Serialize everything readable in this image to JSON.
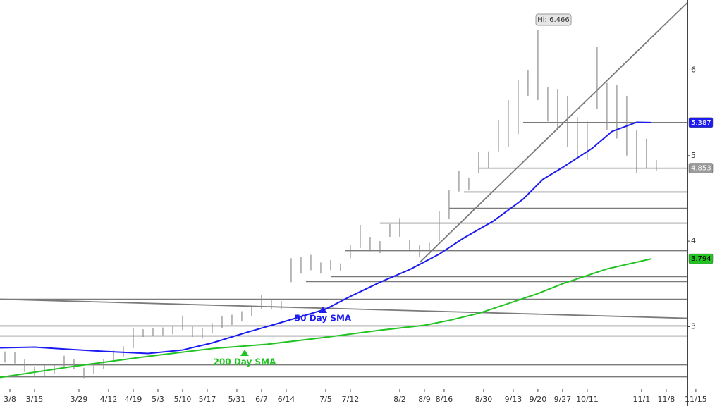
{
  "chart_data": {
    "type": "ohlc",
    "xlim": [
      -2,
      137.3
    ],
    "ylim": [
      2.27,
      6.82
    ],
    "yticks": [
      3,
      4,
      5,
      6
    ],
    "xticks": [
      {
        "value": 0,
        "label": "3/8"
      },
      {
        "value": 5,
        "label": "3/15"
      },
      {
        "value": 14,
        "label": "3/29"
      },
      {
        "value": 20,
        "label": "4/12"
      },
      {
        "value": 25,
        "label": "4/19"
      },
      {
        "value": 30,
        "label": "5/3"
      },
      {
        "value": 35,
        "label": "5/10"
      },
      {
        "value": 40,
        "label": "5/17"
      },
      {
        "value": 46,
        "label": "5/31"
      },
      {
        "value": 51,
        "label": "6/7"
      },
      {
        "value": 56,
        "label": "6/14"
      },
      {
        "value": 64,
        "label": "7/5"
      },
      {
        "value": 69,
        "label": "7/12"
      },
      {
        "value": 79,
        "label": "8/2"
      },
      {
        "value": 84,
        "label": "8/9"
      },
      {
        "value": 88,
        "label": "8/16"
      },
      {
        "value": 96,
        "label": "8/30"
      },
      {
        "value": 102,
        "label": "9/13"
      },
      {
        "value": 107,
        "label": "9/20"
      },
      {
        "value": 112,
        "label": "9/27"
      },
      {
        "value": 117,
        "label": "10/11"
      },
      {
        "value": 128,
        "label": "11/1"
      },
      {
        "value": 133,
        "label": "11/8"
      },
      {
        "value": 139,
        "label": "11/15"
      }
    ],
    "high_label": "Hi: 6.466",
    "bars": {
      "color": "#8c8c8c",
      "last": 4.853,
      "x": [
        -1,
        1,
        3,
        5,
        7,
        9,
        11,
        13,
        15,
        17,
        19,
        21,
        23,
        25,
        27,
        29,
        31,
        33,
        35,
        37,
        39,
        41,
        43,
        45,
        47,
        49,
        51,
        53,
        55,
        57,
        59,
        61,
        63,
        65,
        67,
        69,
        71,
        73,
        75,
        77,
        79,
        81,
        83,
        85,
        87,
        89,
        91,
        93,
        95,
        97,
        99,
        101,
        103,
        105,
        107,
        109,
        111,
        113,
        115,
        117,
        119,
        121,
        123,
        125,
        127,
        129,
        131
      ],
      "high": [
        2.71,
        2.7,
        2.62,
        2.53,
        2.55,
        2.56,
        2.66,
        2.62,
        2.52,
        2.56,
        2.62,
        2.72,
        2.77,
        2.98,
        2.97,
        2.98,
        2.99,
        3.0,
        3.13,
        3.0,
        2.98,
        3.04,
        3.12,
        3.14,
        3.18,
        3.25,
        3.37,
        3.32,
        3.3,
        3.8,
        3.82,
        3.84,
        3.75,
        3.78,
        3.74,
        3.96,
        4.19,
        4.05,
        4.0,
        4.2,
        4.27,
        4.01,
        3.95,
        3.98,
        4.35,
        4.6,
        4.82,
        4.74,
        5.04,
        5.05,
        5.42,
        5.65,
        5.88,
        6.0,
        6.466,
        5.8,
        5.78,
        5.7,
        5.45,
        5.4,
        6.27,
        5.85,
        5.83,
        5.7,
        5.3,
        5.2,
        4.95
      ],
      "low": [
        2.58,
        2.57,
        2.47,
        2.42,
        2.42,
        2.45,
        2.52,
        2.5,
        2.4,
        2.45,
        2.5,
        2.6,
        2.65,
        2.75,
        2.88,
        2.89,
        2.9,
        2.91,
        2.96,
        2.88,
        2.86,
        2.92,
        2.98,
        3.02,
        3.06,
        3.12,
        3.21,
        3.2,
        3.2,
        3.52,
        3.62,
        3.66,
        3.62,
        3.66,
        3.65,
        3.8,
        3.92,
        3.88,
        3.86,
        4.05,
        4.05,
        3.9,
        3.82,
        3.84,
        4.0,
        4.26,
        4.58,
        4.6,
        4.8,
        4.85,
        5.05,
        5.1,
        5.25,
        5.7,
        5.65,
        5.4,
        5.3,
        5.1,
        5.0,
        4.95,
        5.55,
        5.3,
        5.2,
        5.0,
        4.8,
        4.85,
        4.82
      ]
    },
    "series": [
      {
        "name": "50 Day SMA",
        "color": "#1c1cf0",
        "last": 5.387,
        "x": [
          -2,
          5,
          12,
          19,
          28,
          35,
          41,
          48,
          55,
          64,
          69,
          75,
          81,
          87,
          92,
          98,
          104,
          108,
          112,
          118,
          122,
          127,
          130
        ],
        "values": [
          2.752,
          2.76,
          2.735,
          2.711,
          2.686,
          2.727,
          2.81,
          2.933,
          3.049,
          3.205,
          3.354,
          3.519,
          3.667,
          3.848,
          4.038,
          4.236,
          4.491,
          4.722,
          4.862,
          5.085,
          5.283,
          5.39,
          5.387
        ]
      },
      {
        "name": "200 Day SMA",
        "color": "#22c322",
        "last": 3.794,
        "x": [
          -2,
          12,
          27,
          41,
          52,
          64,
          75,
          84,
          89,
          95,
          101,
          107,
          112,
          121,
          130
        ],
        "values": [
          2.406,
          2.529,
          2.645,
          2.744,
          2.793,
          2.876,
          2.958,
          3.016,
          3.073,
          3.156,
          3.271,
          3.387,
          3.502,
          3.675,
          3.794
        ]
      }
    ],
    "levels": {
      "color": "#7a7a7a",
      "values": [
        5.387,
        4.853,
        4.574,
        4.384,
        4.211,
        3.889,
        3.585,
        3.527,
        3.321,
        3.008,
        2.892,
        2.554,
        2.414
      ],
      "starts": [
        104,
        95,
        92,
        89,
        75,
        68,
        65,
        60,
        -2,
        -2,
        -2,
        -2,
        -2
      ]
    },
    "trendlines": [
      {
        "x": [
          83,
          137.3
        ],
        "values": [
          3.749,
          6.79
        ]
      },
      {
        "x": [
          -2,
          137.3
        ],
        "values": [
          3.321,
          3.098
        ]
      }
    ]
  }
}
